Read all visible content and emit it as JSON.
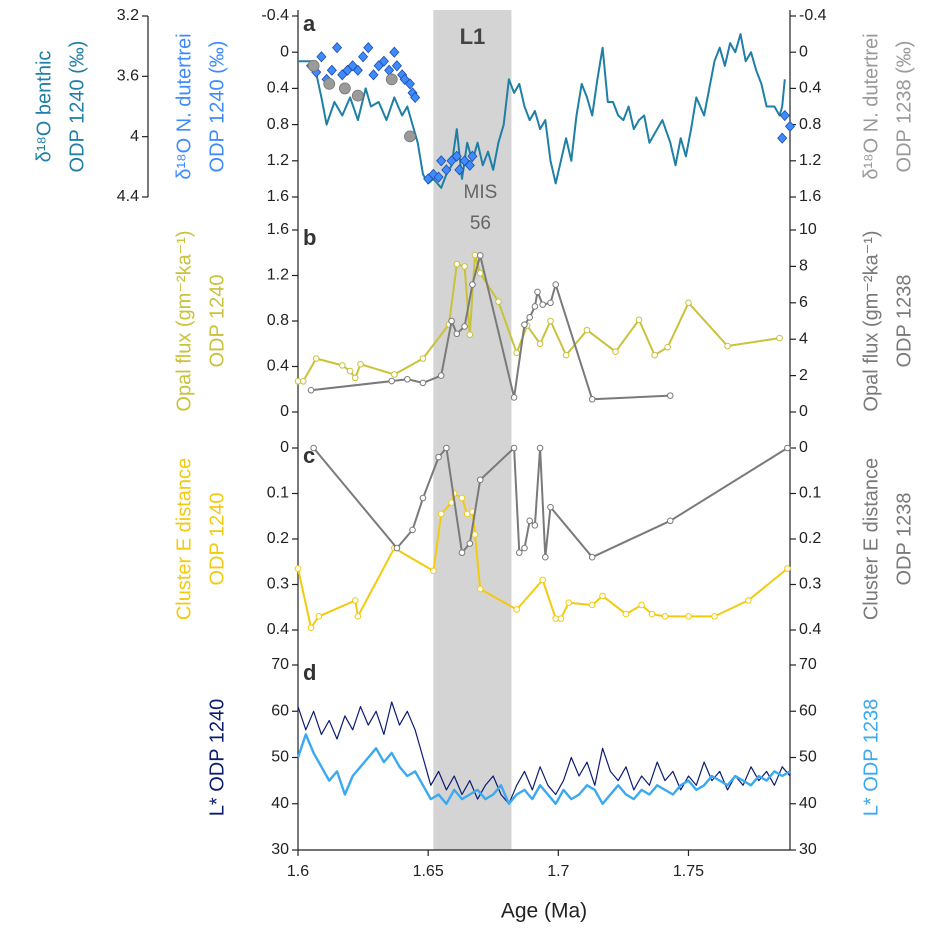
{
  "chart_data": [
    {
      "type": "line",
      "letter": "a",
      "xlim": [
        1.6,
        1.789
      ],
      "ylim": [
        -0.4,
        1.6
      ],
      "yticks": [
        -0.4,
        0,
        0.4,
        0.8,
        1.2,
        1.6
      ],
      "y_reverse": true,
      "ylabel": [
        "δ¹⁸O N. dutertrei",
        "ODP 1240 (‰)"
      ],
      "y2lim": [
        3.2,
        4.4
      ],
      "y2ticks": [
        3.2,
        3.6,
        4,
        4.4
      ],
      "y2_reverse": true,
      "y2_side": "outer-left",
      "y2label": [
        "δ¹⁸O benthic",
        "ODP 1240 (‰)"
      ],
      "y3lim": [
        -0.4,
        1.6
      ],
      "y3ticks": [
        -0.4,
        0,
        0.4,
        0.8,
        1.2,
        1.6
      ],
      "y3_reverse": true,
      "y3_side": "right",
      "y3label": [
        "δ¹⁸O N. dutertrei",
        "ODP 1238 (‰)"
      ],
      "shade": [
        1.652,
        1.682
      ],
      "shade_label": "L1",
      "shade_note": [
        "MIS",
        "56"
      ],
      "series": [
        {
          "axis": "y2",
          "color": "#1f7fa6",
          "marker": "none",
          "x": [
            1.6,
            1.606,
            1.609,
            1.611,
            1.614,
            1.617,
            1.62,
            1.623,
            1.626,
            1.628,
            1.631,
            1.634,
            1.637,
            1.64,
            1.642,
            1.644,
            1.646,
            1.648,
            1.65,
            1.652,
            1.655,
            1.657,
            1.659,
            1.661,
            1.663,
            1.665,
            1.667,
            1.669,
            1.671,
            1.673,
            1.675,
            1.677,
            1.679,
            1.681,
            1.683,
            1.685,
            1.687,
            1.689,
            1.691,
            1.693,
            1.695,
            1.697,
            1.699,
            1.701,
            1.703,
            1.705,
            1.707,
            1.709,
            1.711,
            1.713,
            1.715,
            1.717,
            1.719,
            1.721,
            1.723,
            1.725,
            1.727,
            1.729,
            1.731,
            1.733,
            1.735,
            1.737,
            1.74,
            1.743,
            1.745,
            1.747,
            1.749,
            1.751,
            1.753,
            1.756,
            1.758,
            1.76,
            1.762,
            1.764,
            1.766,
            1.768,
            1.77,
            1.772,
            1.774,
            1.776,
            1.778,
            1.78,
            1.783,
            1.785,
            1.786,
            1.787
          ],
          "values": [
            3.5,
            3.5,
            3.74,
            3.92,
            3.77,
            3.86,
            3.74,
            3.89,
            3.68,
            3.8,
            3.77,
            3.89,
            3.74,
            3.86,
            3.8,
            3.92,
            4.04,
            4.25,
            4.31,
            4.28,
            4.34,
            4.25,
            4.19,
            3.95,
            4.28,
            4.04,
            4.16,
            4.04,
            4.19,
            4.1,
            4.22,
            4.04,
            3.92,
            3.62,
            3.71,
            3.65,
            3.8,
            3.89,
            3.83,
            3.95,
            3.89,
            4.16,
            4.31,
            4.16,
            4.01,
            4.16,
            3.86,
            3.65,
            3.74,
            3.86,
            3.62,
            3.41,
            3.77,
            3.77,
            3.86,
            3.89,
            3.8,
            3.95,
            3.89,
            3.86,
            4.04,
            3.98,
            3.89,
            4.04,
            4.19,
            4.01,
            4.13,
            3.95,
            3.74,
            3.86,
            3.68,
            3.5,
            3.41,
            3.53,
            3.38,
            3.44,
            3.32,
            3.5,
            3.44,
            3.56,
            3.65,
            3.8,
            3.8,
            3.86,
            3.8,
            3.62
          ]
        },
        {
          "axis": "y",
          "color": "#3d8bff",
          "marker": "diamond",
          "line": false,
          "x": [
            1.605,
            1.607,
            1.609,
            1.611,
            1.613,
            1.615,
            1.617,
            1.619,
            1.621,
            1.623,
            1.625,
            1.627,
            1.629,
            1.631,
            1.633,
            1.635,
            1.637,
            1.638,
            1.64,
            1.641,
            1.643,
            1.644,
            1.645,
            1.65,
            1.652,
            1.654,
            1.655,
            1.657,
            1.659,
            1.661,
            1.662,
            1.664,
            1.666,
            1.667,
            1.786,
            1.787,
            1.789
          ],
          "values": [
            0.15,
            0.22,
            0.05,
            0.3,
            0.2,
            -0.05,
            0.25,
            0.2,
            0.15,
            0.2,
            0.05,
            -0.05,
            0.25,
            0.15,
            0.1,
            0.2,
            0.0,
            0.15,
            0.25,
            0.3,
            0.35,
            0.45,
            0.5,
            1.4,
            1.35,
            1.38,
            1.2,
            1.3,
            1.2,
            1.15,
            1.3,
            1.2,
            1.25,
            1.15,
            0.95,
            0.7,
            0.82
          ]
        },
        {
          "axis": "y3",
          "color": "#9a9a9a",
          "marker": "dot",
          "line": false,
          "x": [
            1.606,
            1.612,
            1.618,
            1.623,
            1.636,
            1.643
          ],
          "values": [
            0.15,
            0.35,
            0.4,
            0.48,
            0.3,
            0.93
          ]
        }
      ]
    },
    {
      "type": "line",
      "letter": "b",
      "xlim": [
        1.6,
        1.789
      ],
      "ylim": [
        0,
        1.6
      ],
      "yticks": [
        0,
        0.4,
        0.8,
        1.2,
        1.6
      ],
      "ylabel": [
        "Opal flux (gm⁻²ka⁻¹)",
        "ODP 1240"
      ],
      "y2lim": [
        0,
        10
      ],
      "y2ticks": [
        0,
        2,
        4,
        6,
        8,
        10
      ],
      "y2_side": "right",
      "y2label": [
        "Opal flux (gm⁻²ka⁻¹)",
        "ODP 1238"
      ],
      "series": [
        {
          "axis": "y",
          "color": "#c9c23a",
          "marker": "open-circle",
          "x": [
            1.6,
            1.602,
            1.607,
            1.617,
            1.62,
            1.622,
            1.624,
            1.637,
            1.648,
            1.658,
            1.661,
            1.664,
            1.666,
            1.668,
            1.67,
            1.677,
            1.684,
            1.688,
            1.693,
            1.697,
            1.703,
            1.711,
            1.722,
            1.731,
            1.737,
            1.742,
            1.75,
            1.765,
            1.785
          ],
          "values": [
            0.27,
            0.27,
            0.47,
            0.41,
            0.36,
            0.3,
            0.42,
            0.33,
            0.47,
            0.77,
            1.3,
            1.28,
            0.68,
            1.38,
            1.22,
            0.97,
            0.52,
            0.76,
            0.6,
            0.8,
            0.5,
            0.72,
            0.53,
            0.81,
            0.5,
            0.57,
            0.96,
            0.58,
            0.65
          ]
        },
        {
          "axis": "y2",
          "color": "#7a7a7a",
          "marker": "open-circle",
          "x": [
            1.605,
            1.636,
            1.642,
            1.648,
            1.655,
            1.659,
            1.661,
            1.664,
            1.667,
            1.67,
            1.683,
            1.687,
            1.689,
            1.691,
            1.692,
            1.694,
            1.697,
            1.699,
            1.713,
            1.743
          ],
          "values": [
            1.2,
            1.7,
            1.8,
            1.6,
            2.0,
            5.0,
            4.3,
            4.7,
            7.0,
            8.6,
            0.8,
            4.8,
            5.2,
            5.8,
            6.6,
            5.9,
            6.0,
            7.0,
            0.7,
            0.9
          ]
        }
      ]
    },
    {
      "type": "line",
      "letter": "c",
      "xlim": [
        1.6,
        1.789
      ],
      "ylim": [
        0,
        0.4
      ],
      "yticks": [
        0,
        0.1,
        0.2,
        0.3,
        0.4
      ],
      "y_reverse": true,
      "ylabel": [
        "Cluster E distance",
        "ODP 1240"
      ],
      "y2lim": [
        0,
        0.4
      ],
      "y2ticks": [
        0,
        0.1,
        0.2,
        0.3,
        0.4
      ],
      "y2_reverse": true,
      "y2_side": "right",
      "y2label": [
        "Cluster E distance",
        "ODP 1238"
      ],
      "series": [
        {
          "axis": "y",
          "color": "#f2cb0f",
          "marker": "open-circle",
          "x": [
            1.6,
            1.605,
            1.608,
            1.622,
            1.623,
            1.637,
            1.652,
            1.655,
            1.659,
            1.66,
            1.663,
            1.665,
            1.667,
            1.668,
            1.67,
            1.684,
            1.694,
            1.699,
            1.701,
            1.704,
            1.713,
            1.717,
            1.726,
            1.732,
            1.736,
            1.741,
            1.75,
            1.76,
            1.773,
            1.788
          ],
          "values": [
            0.265,
            0.395,
            0.37,
            0.335,
            0.37,
            0.22,
            0.27,
            0.145,
            0.12,
            0.1,
            0.11,
            0.145,
            0.14,
            0.19,
            0.31,
            0.355,
            0.29,
            0.375,
            0.375,
            0.34,
            0.345,
            0.325,
            0.365,
            0.345,
            0.365,
            0.37,
            0.37,
            0.37,
            0.335,
            0.265
          ]
        },
        {
          "axis": "y2",
          "color": "#7a7a7a",
          "marker": "open-circle",
          "x": [
            1.606,
            1.638,
            1.644,
            1.648,
            1.654,
            1.657,
            1.663,
            1.666,
            1.67,
            1.683,
            1.685,
            1.687,
            1.689,
            1.691,
            1.693,
            1.695,
            1.697,
            1.713,
            1.743,
            1.788
          ],
          "values": [
            0,
            0.22,
            0.18,
            0.11,
            0.02,
            0,
            0.23,
            0.21,
            0.07,
            0.0,
            0.23,
            0.22,
            0.16,
            0.17,
            0.0,
            0.24,
            0.13,
            0.24,
            0.16,
            0.0
          ]
        }
      ]
    },
    {
      "type": "line",
      "letter": "d",
      "xlim": [
        1.6,
        1.789
      ],
      "xticks": [
        1.6,
        1.65,
        1.7,
        1.75
      ],
      "xlabel": "Age (Ma)",
      "ylim": [
        30,
        70
      ],
      "yticks": [
        30,
        40,
        50,
        60,
        70
      ],
      "ylabel": [
        "L* ODP 1240"
      ],
      "y2lim": [
        30,
        70
      ],
      "y2ticks": [
        30,
        40,
        50,
        60,
        70
      ],
      "y2_side": "right",
      "y2label": [
        "L* ODP 1238"
      ],
      "x": [
        1.6,
        1.603,
        1.606,
        1.609,
        1.612,
        1.615,
        1.618,
        1.621,
        1.624,
        1.627,
        1.63,
        1.633,
        1.636,
        1.639,
        1.642,
        1.645,
        1.648,
        1.651,
        1.654,
        1.657,
        1.66,
        1.663,
        1.666,
        1.669,
        1.672,
        1.675,
        1.678,
        1.681,
        1.684,
        1.687,
        1.69,
        1.693,
        1.696,
        1.699,
        1.702,
        1.705,
        1.708,
        1.711,
        1.714,
        1.717,
        1.72,
        1.723,
        1.726,
        1.729,
        1.732,
        1.735,
        1.738,
        1.741,
        1.744,
        1.747,
        1.75,
        1.753,
        1.756,
        1.759,
        1.762,
        1.765,
        1.768,
        1.771,
        1.774,
        1.777,
        1.78,
        1.783,
        1.786,
        1.789
      ],
      "series": [
        {
          "axis": "y",
          "color": "#0c1c72",
          "marker": "none",
          "width": 1.2,
          "values": [
            61,
            56,
            60,
            55,
            58,
            54,
            59,
            56,
            61,
            57,
            60,
            55,
            62,
            57,
            60,
            56,
            50,
            44,
            47,
            43,
            46,
            42,
            45,
            41,
            44,
            46,
            42,
            40,
            44,
            47,
            43,
            48,
            44,
            42,
            45,
            50,
            46,
            49,
            44,
            52,
            47,
            45,
            48,
            43,
            46,
            44,
            49,
            45,
            47,
            43,
            46,
            44,
            49,
            45,
            47,
            43,
            46,
            44,
            48,
            45,
            47,
            44,
            48,
            46
          ]
        },
        {
          "axis": "y2",
          "color": "#3aa9f2",
          "marker": "none",
          "width": 2.4,
          "values": [
            50,
            55,
            51,
            48,
            45,
            47,
            42,
            46,
            48,
            50,
            52,
            49,
            51,
            48,
            46,
            47,
            44,
            41,
            42,
            40,
            43,
            41,
            42,
            43,
            41,
            42,
            44,
            40,
            42,
            43,
            41,
            44,
            42,
            40,
            43,
            41,
            42,
            44,
            43,
            40,
            42,
            44,
            42,
            41,
            43,
            42,
            44,
            43,
            42,
            44,
            45,
            43,
            44,
            46,
            45,
            44,
            46,
            45,
            44,
            46,
            45,
            47,
            46,
            47
          ]
        }
      ]
    }
  ]
}
